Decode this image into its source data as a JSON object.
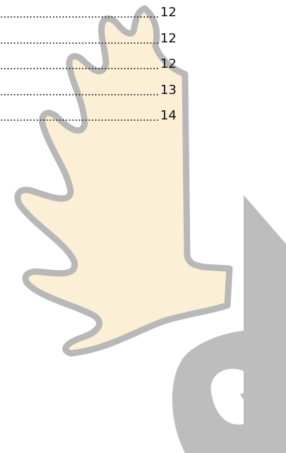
{
  "toc": {
    "entries": [
      {
        "page": 12
      },
      {
        "page": 12
      },
      {
        "page": 12
      },
      {
        "page": 13
      },
      {
        "page": 14
      }
    ]
  }
}
